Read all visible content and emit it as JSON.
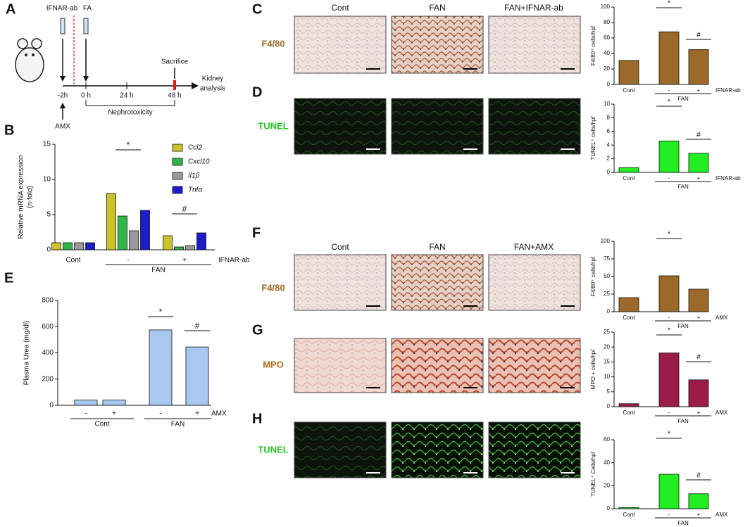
{
  "panels": [
    "A",
    "B",
    "C",
    "D",
    "E",
    "F",
    "G",
    "H"
  ],
  "diagram": {
    "treatment": "IFNAR-ab",
    "injury": "FA",
    "sacrifice": "Sacrifice",
    "outcome": [
      "Kidney",
      "analysis"
    ],
    "times": [
      "-2h",
      "0 h",
      "24 h",
      "48 h"
    ],
    "period": "Nephrotoxicity",
    "alt_treatment": "AMX"
  },
  "micrographs": [
    {
      "headers": [
        "Cont",
        "FAN",
        "FAN+IFNAR-ab"
      ],
      "stains": [
        "F4/80",
        "TUNEL"
      ]
    },
    {
      "headers": [
        "Cont",
        "FAN",
        "FAN+AMX"
      ],
      "stains": [
        "F4/80",
        "MPO",
        "TUNEL"
      ]
    }
  ],
  "chart_data": [
    {
      "type": "bar",
      "y_label": [
        "Relative mRNA expression",
        "(n-fold)"
      ],
      "categories": [
        "Cont",
        "-",
        "+"
      ],
      "series": [
        {
          "name": "Ccl2",
          "color": "#c9c22b",
          "values": [
            1,
            8,
            2
          ]
        },
        {
          "name": "Cxcl10",
          "color": "#2fb54a",
          "values": [
            1,
            4.8,
            0.4
          ]
        },
        {
          "name": "Il1β",
          "color": "#9a9a9a",
          "values": [
            1,
            2.7,
            0.6
          ]
        },
        {
          "name": "Tnfα",
          "color": "#1c1ccc",
          "values": [
            1,
            5.6,
            2.4
          ]
        }
      ],
      "ylim": [
        0,
        15
      ],
      "yticks": [
        0,
        5,
        10,
        15
      ],
      "group_labels": [
        "FAN"
      ],
      "row_label": "IFNAR-ab",
      "annotations": [
        "*",
        "#"
      ]
    },
    {
      "type": "bar",
      "y_label": [
        "Plasma Urea (mg/dl)"
      ],
      "categories": [
        "-",
        "+",
        "-",
        "+"
      ],
      "values": [
        40,
        40,
        575,
        445
      ],
      "color": "#a9c8f0",
      "ylim": [
        0,
        800
      ],
      "yticks": [
        0,
        200,
        400,
        600,
        800
      ],
      "group_labels": [
        "Cont",
        "FAN"
      ],
      "row_label": "AMX",
      "annotations": [
        "*",
        "#"
      ]
    },
    {
      "type": "bar",
      "y_label": [
        "F4/80⁺ cells/hpf"
      ],
      "categories": [
        "Cont",
        "-",
        "+"
      ],
      "values": [
        31,
        68,
        45
      ],
      "color": "#9b6a2a",
      "ylim": [
        0,
        100
      ],
      "yticks": [
        0,
        20,
        40,
        60,
        80,
        100
      ],
      "group_labels": [
        "FAN"
      ],
      "row_label": "IFNAR-ab",
      "annotations": [
        "*",
        "#"
      ]
    },
    {
      "type": "bar",
      "y_label": [
        "TUNEL⁺ cells/hpf"
      ],
      "categories": [
        "Cont",
        "-",
        "+"
      ],
      "values": [
        0.7,
        4.6,
        2.8
      ],
      "color": "#22ee22",
      "ylim": [
        0,
        10
      ],
      "yticks": [
        0,
        2,
        4,
        6,
        8,
        10
      ],
      "group_labels": [
        "FAN"
      ],
      "row_label": "IFNAR-ab",
      "annotations": [
        "*",
        "#"
      ]
    },
    {
      "type": "bar",
      "y_label": [
        "F4/80⁺ cells/hpf"
      ],
      "categories": [
        "Cont",
        "-",
        "+"
      ],
      "values": [
        20,
        51,
        32
      ],
      "color": "#9b6a2a",
      "ylim": [
        0,
        100
      ],
      "yticks": [
        0,
        25,
        50,
        75,
        100
      ],
      "group_labels": [
        "FAN"
      ],
      "row_label": "AMX",
      "annotations": [
        "*"
      ]
    },
    {
      "type": "bar",
      "y_label": [
        "MPO + cells/hpf"
      ],
      "categories": [
        "Cont",
        "-",
        "+"
      ],
      "values": [
        1,
        18,
        9
      ],
      "color": "#9b1c4a",
      "ylim": [
        0,
        25
      ],
      "yticks": [
        0,
        5,
        10,
        15,
        20,
        25
      ],
      "group_labels": [
        "FAN"
      ],
      "row_label": "AMX",
      "annotations": [
        "*",
        "#"
      ]
    },
    {
      "type": "bar",
      "y_label": [
        "TUNEL⁺ Cells/hpf"
      ],
      "categories": [
        "Cont",
        "-",
        "+"
      ],
      "values": [
        1,
        30,
        13
      ],
      "color": "#22ee22",
      "ylim": [
        0,
        60
      ],
      "yticks": [
        0,
        20,
        40,
        60
      ],
      "group_labels": [
        "FAN"
      ],
      "row_label": "AMX",
      "annotations": [
        "*",
        "#"
      ]
    }
  ]
}
